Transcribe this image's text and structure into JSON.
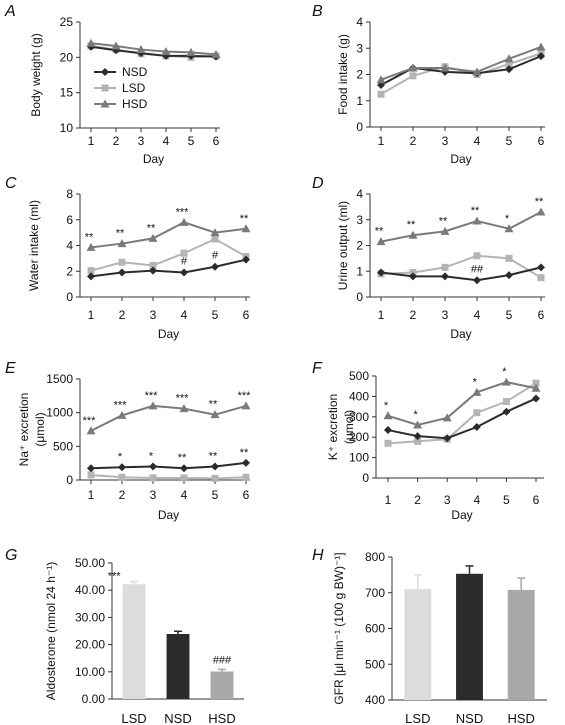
{
  "colors": {
    "NSD": "#2b2b2b",
    "LSD": "#b4b4b4",
    "HSD": "#7a7a7a",
    "bar_LSD": "#dcdcdc",
    "bar_NSD": "#2b2b2b",
    "bar_HSD": "#a8a8a8"
  },
  "chart_data": [
    {
      "id": "A",
      "panel_label": "A",
      "type": "line",
      "x": [
        1,
        2,
        3,
        4,
        5,
        6
      ],
      "xlabel": "Day",
      "ylabel": "Body weight (g)",
      "ylim": [
        10,
        25
      ],
      "yticks": [
        "10",
        "15",
        "20",
        "25"
      ],
      "xticks": [
        "1",
        "2",
        "3",
        "4",
        "5",
        "6"
      ],
      "legend": {
        "placement": "inside-left",
        "entries": [
          "NSD",
          "LSD",
          "HSD"
        ]
      },
      "series": [
        {
          "name": "NSD",
          "values": [
            21.5,
            21.0,
            20.6,
            20.2,
            20.2,
            20.1
          ]
        },
        {
          "name": "LSD",
          "values": [
            21.6,
            21.1,
            20.5,
            20.2,
            20.0,
            20.2
          ]
        },
        {
          "name": "HSD",
          "values": [
            22.0,
            21.6,
            21.1,
            20.8,
            20.7,
            20.4
          ]
        }
      ],
      "annotations": []
    },
    {
      "id": "B",
      "panel_label": "B",
      "type": "line",
      "x": [
        1,
        2,
        3,
        4,
        5,
        6
      ],
      "xlabel": "Day",
      "ylabel": "Food intake (g)",
      "ylim": [
        0,
        4
      ],
      "yticks": [
        "0",
        "1",
        "2",
        "3",
        "4"
      ],
      "xticks": [
        "1",
        "2",
        "3",
        "4",
        "5",
        "6"
      ],
      "series": [
        {
          "name": "NSD",
          "values": [
            1.6,
            2.25,
            2.1,
            2.05,
            2.2,
            2.7
          ]
        },
        {
          "name": "LSD",
          "values": [
            1.25,
            1.95,
            2.3,
            2.0,
            2.4,
            2.8
          ]
        },
        {
          "name": "HSD",
          "values": [
            1.8,
            2.25,
            2.25,
            2.1,
            2.6,
            3.05
          ]
        }
      ],
      "annotations": []
    },
    {
      "id": "C",
      "panel_label": "C",
      "type": "line",
      "x": [
        1,
        2,
        3,
        4,
        5,
        6
      ],
      "xlabel": "Day",
      "ylabel": "Water intake  (ml)",
      "ylim": [
        0,
        8
      ],
      "yticks": [
        "0",
        "2",
        "4",
        "6",
        "8"
      ],
      "xticks": [
        "1",
        "2",
        "3",
        "4",
        "5",
        "6"
      ],
      "series": [
        {
          "name": "NSD",
          "values": [
            1.6,
            1.9,
            2.05,
            1.9,
            2.35,
            2.9
          ]
        },
        {
          "name": "LSD",
          "values": [
            2.05,
            2.7,
            2.45,
            3.4,
            4.5,
            3.15
          ]
        },
        {
          "name": "HSD",
          "values": [
            3.85,
            4.15,
            4.55,
            5.8,
            5.0,
            5.3
          ]
        }
      ],
      "annotations": [
        {
          "x": 1,
          "y": 3.85,
          "text": "**"
        },
        {
          "x": 2,
          "y": 4.15,
          "text": "**"
        },
        {
          "x": 3,
          "y": 4.55,
          "text": "**"
        },
        {
          "x": 4,
          "y": 5.8,
          "text": "***"
        },
        {
          "x": 6,
          "y": 5.3,
          "text": "**"
        },
        {
          "x": 4,
          "y": 1.9,
          "text": "#"
        },
        {
          "x": 5,
          "y": 2.35,
          "text": "#"
        }
      ]
    },
    {
      "id": "D",
      "panel_label": "D",
      "type": "line",
      "x": [
        1,
        2,
        3,
        4,
        5,
        6
      ],
      "xlabel": "Day",
      "ylabel": "Urine output  (ml)",
      "ylim": [
        0,
        4
      ],
      "yticks": [
        "0",
        "1",
        "2",
        "3",
        "4"
      ],
      "xticks": [
        "1",
        "2",
        "3",
        "4",
        "5",
        "6"
      ],
      "series": [
        {
          "name": "NSD",
          "values": [
            0.95,
            0.8,
            0.8,
            0.65,
            0.85,
            1.15
          ]
        },
        {
          "name": "LSD",
          "values": [
            0.9,
            0.95,
            1.15,
            1.6,
            1.5,
            0.75
          ]
        },
        {
          "name": "HSD",
          "values": [
            2.15,
            2.4,
            2.55,
            2.95,
            2.65,
            3.3
          ]
        }
      ],
      "annotations": [
        {
          "x": 1,
          "y": 2.15,
          "text": "**"
        },
        {
          "x": 2,
          "y": 2.4,
          "text": "**"
        },
        {
          "x": 3,
          "y": 2.55,
          "text": "**"
        },
        {
          "x": 4,
          "y": 2.95,
          "text": "**"
        },
        {
          "x": 5,
          "y": 2.65,
          "text": "*"
        },
        {
          "x": 6,
          "y": 3.3,
          "text": "**"
        },
        {
          "x": 4,
          "y": 0.65,
          "text": "##"
        }
      ]
    },
    {
      "id": "E",
      "panel_label": "E",
      "type": "line",
      "x": [
        1,
        2,
        3,
        4,
        5,
        6
      ],
      "xlabel": "Day",
      "ylabel": "Na⁺ excretion",
      "ylabel2": "(μmol)",
      "ylim": [
        0,
        1500
      ],
      "yticks": [
        "0",
        "500",
        "1000",
        "1500"
      ],
      "xticks": [
        "1",
        "2",
        "3",
        "4",
        "5",
        "6"
      ],
      "series": [
        {
          "name": "NSD",
          "values": [
            175,
            190,
            200,
            175,
            200,
            255
          ]
        },
        {
          "name": "LSD",
          "values": [
            75,
            40,
            30,
            30,
            25,
            40
          ]
        },
        {
          "name": "HSD",
          "values": [
            730,
            960,
            1100,
            1060,
            970,
            1100
          ]
        }
      ],
      "annotations": [
        {
          "x": 1,
          "y": 730,
          "text": "***"
        },
        {
          "x": 2,
          "y": 960,
          "text": "***"
        },
        {
          "x": 3,
          "y": 1100,
          "text": "***"
        },
        {
          "x": 4,
          "y": 1060,
          "text": "***"
        },
        {
          "x": 5,
          "y": 970,
          "text": "**"
        },
        {
          "x": 6,
          "y": 1100,
          "text": "***"
        },
        {
          "x": 2,
          "y": 190,
          "text": "*"
        },
        {
          "x": 3,
          "y": 200,
          "text": "*"
        },
        {
          "x": 4,
          "y": 175,
          "text": "**"
        },
        {
          "x": 5,
          "y": 200,
          "text": "**"
        },
        {
          "x": 6,
          "y": 255,
          "text": "**"
        }
      ]
    },
    {
      "id": "F",
      "panel_label": "F",
      "type": "line",
      "x": [
        1,
        2,
        3,
        4,
        5,
        6
      ],
      "xlabel": "Day",
      "ylabel": "K⁺ excretion",
      "ylabel2": "(μmol)",
      "ylim": [
        0,
        500
      ],
      "yticks": [
        "0",
        "100",
        "200",
        "300",
        "400",
        "500"
      ],
      "xticks": [
        "1",
        "2",
        "3",
        "4",
        "5",
        "6"
      ],
      "series": [
        {
          "name": "NSD",
          "values": [
            235,
            205,
            195,
            250,
            325,
            390
          ]
        },
        {
          "name": "LSD",
          "values": [
            170,
            180,
            190,
            320,
            375,
            465
          ]
        },
        {
          "name": "HSD",
          "values": [
            305,
            260,
            295,
            420,
            470,
            440
          ]
        }
      ],
      "annotations": [
        {
          "x": 1,
          "y": 305,
          "text": "*"
        },
        {
          "x": 2,
          "y": 260,
          "text": "*"
        },
        {
          "x": 4,
          "y": 420,
          "text": "*"
        },
        {
          "x": 5,
          "y": 470,
          "text": "*"
        }
      ]
    },
    {
      "id": "G",
      "panel_label": "G",
      "type": "bar",
      "categories": [
        "LSD",
        "NSD",
        "HSD"
      ],
      "ylabel": "Aldosterone  (nmol 24 h⁻¹)",
      "ylim": [
        0,
        50
      ],
      "yticks": [
        "0.00",
        "10.00",
        "20.00",
        "30.00",
        "40.00",
        "50.00"
      ],
      "values": [
        42.2,
        23.9,
        10.1
      ],
      "errors": [
        1.0,
        1.0,
        0.8
      ],
      "annotations": [
        {
          "category": "LSD",
          "text": "***"
        },
        {
          "category": "HSD",
          "text": "###"
        }
      ]
    },
    {
      "id": "H",
      "panel_label": "H",
      "type": "bar",
      "categories": [
        "LSD",
        "NSD",
        "HSD"
      ],
      "ylabel": "GFR [μl min⁻¹ (100 g BW)⁻¹]",
      "ylim": [
        400,
        800
      ],
      "yticks": [
        "400",
        "500",
        "600",
        "700",
        "800"
      ],
      "values": [
        710,
        753,
        708
      ],
      "errors": [
        40,
        22,
        33
      ],
      "annotations": []
    }
  ]
}
